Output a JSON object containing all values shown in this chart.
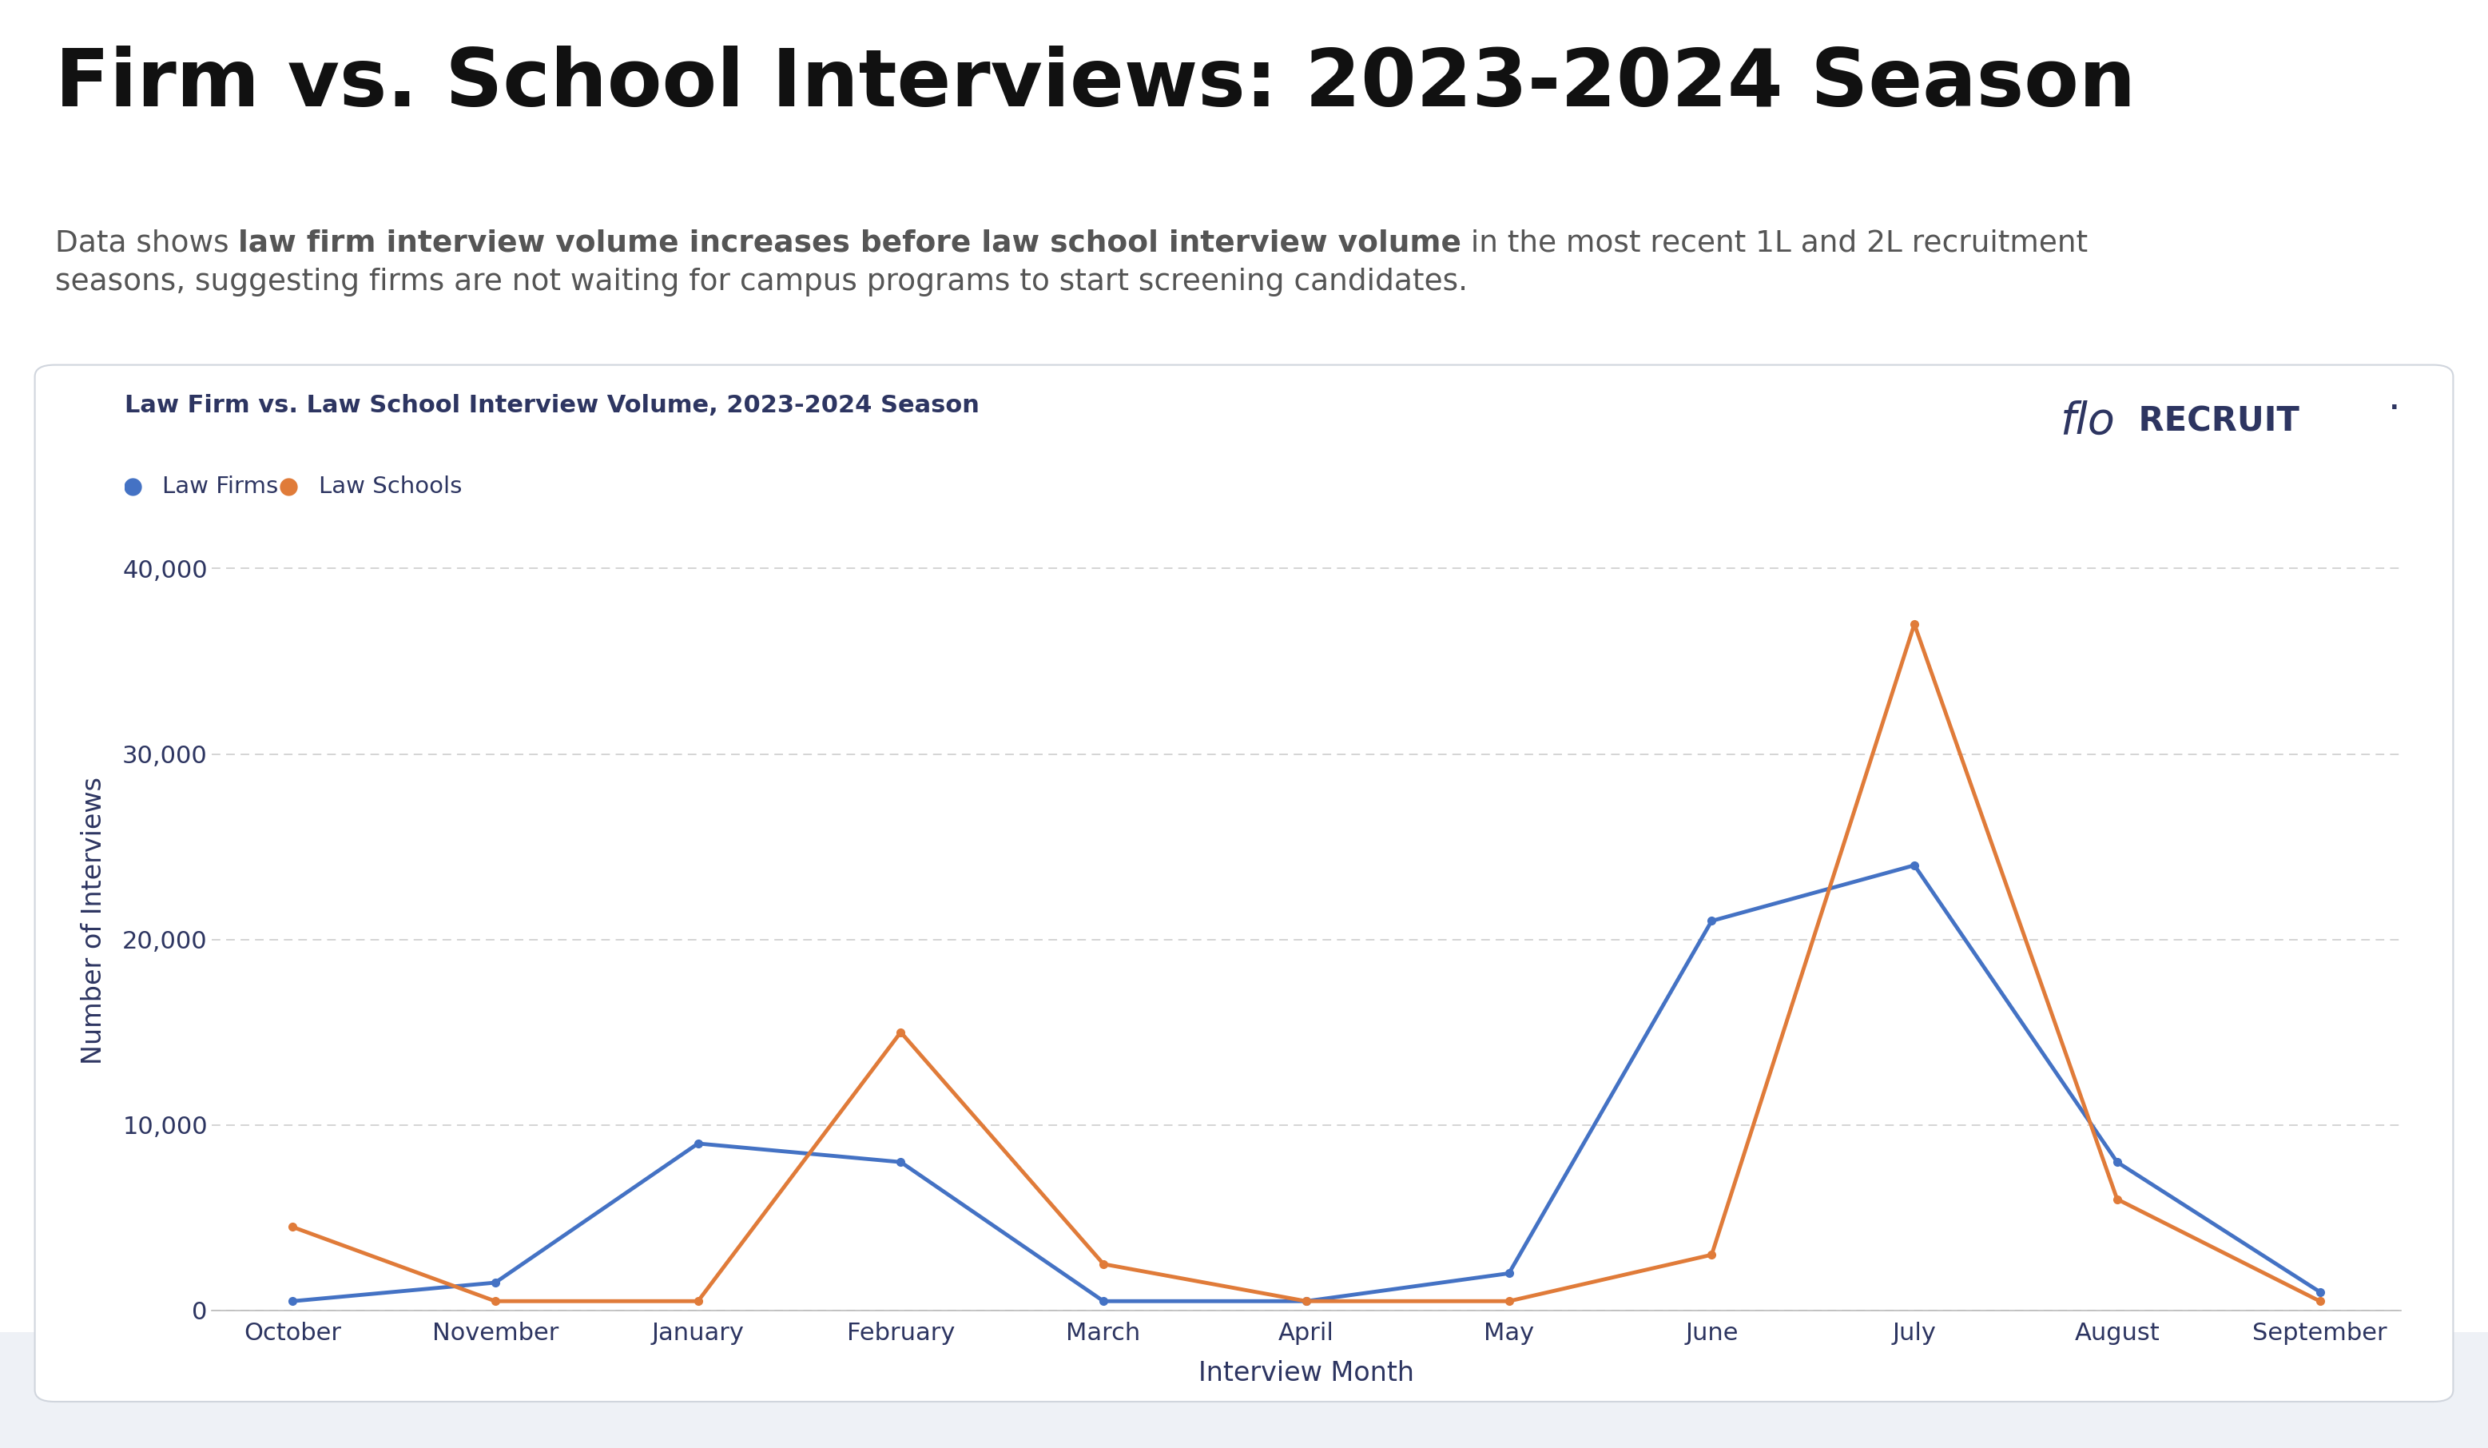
{
  "title_main": "Firm vs. School Interviews: 2023-2024 Season",
  "subtitle_part1": "Data shows ",
  "subtitle_bold": "law firm interview volume increases before law school interview volume",
  "subtitle_part2": " in the most recent 1L and 2L recruitment",
  "subtitle_line2": "seasons, suggesting firms are not waiting for campus programs to start screening candidates.",
  "chart_title": "Law Firm vs. Law School Interview Volume, 2023-2024 Season",
  "xlabel": "Interview Month",
  "ylabel": "Number of Interviews",
  "months": [
    "October",
    "November",
    "January",
    "February",
    "March",
    "April",
    "May",
    "June",
    "July",
    "August",
    "September"
  ],
  "law_firms": [
    500,
    1500,
    9000,
    8000,
    500,
    500,
    2000,
    21000,
    24000,
    8000,
    1000
  ],
  "law_schools": [
    4500,
    500,
    500,
    15000,
    2500,
    500,
    500,
    3000,
    37000,
    6000,
    500
  ],
  "law_firms_color": "#4472C4",
  "law_schools_color": "#E07B39",
  "ylim_max": 42000,
  "yticks": [
    0,
    10000,
    20000,
    30000,
    40000
  ],
  "bg_white": "#FFFFFF",
  "bg_light_blue": "#EEF1F6",
  "card_bg": "#FFFFFF",
  "card_border": "#D0D5DD",
  "title_color": "#111111",
  "subtitle_color": "#555555",
  "chart_title_color": "#2D3561",
  "axis_label_color": "#2D3561",
  "tick_color": "#2D3561",
  "grid_color": "#CCCCCC",
  "legend_firm": "Law Firms",
  "legend_school": "Law Schools",
  "logo_flo": "flo",
  "logo_recruit": " RECRUIT",
  "logo_color": "#2D3561",
  "logo_trademark": "·"
}
